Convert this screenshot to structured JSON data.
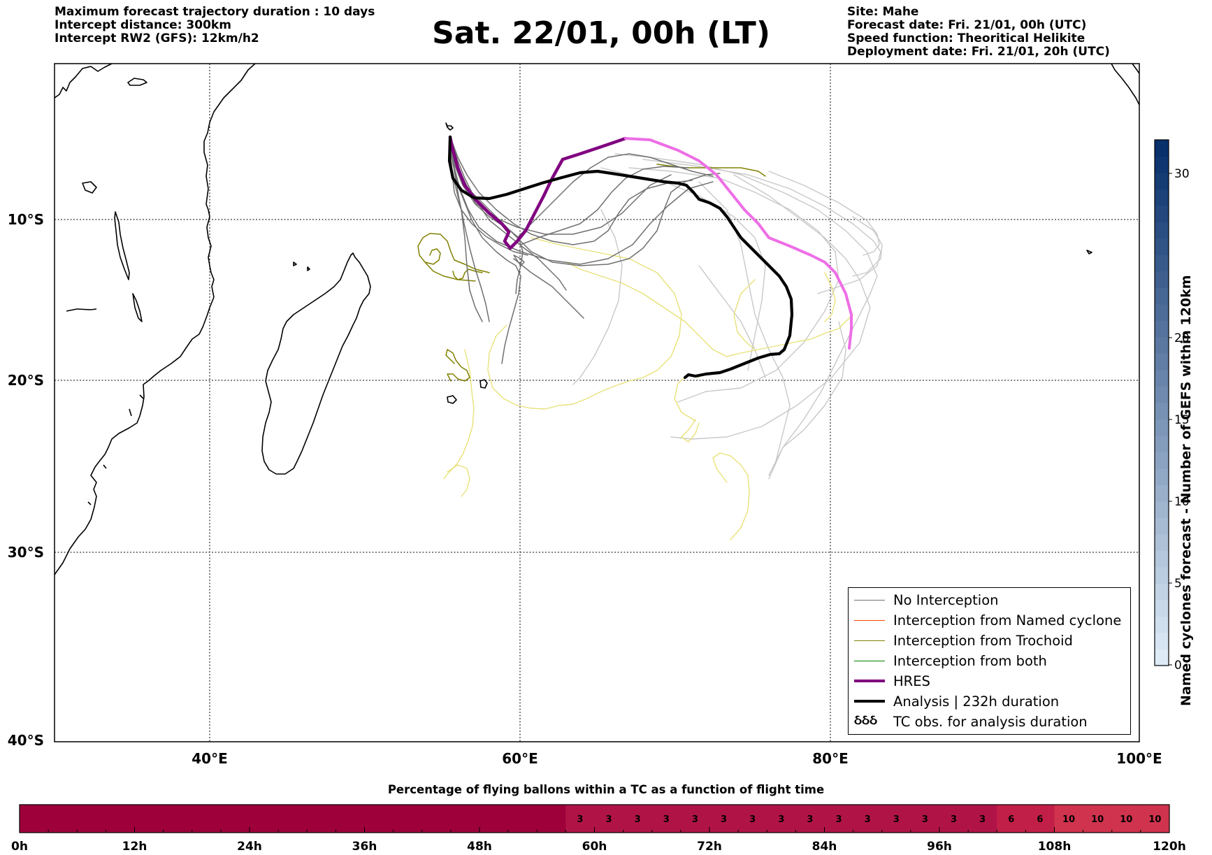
{
  "header": {
    "left": [
      "Maximum forecast trajectory duration : 10 days",
      "Intercept distance: 300km",
      "Intercept RW2 (GFS):  12km/h2"
    ],
    "title": "Sat. 22/01, 00h (LT)",
    "right": [
      "Site: Mahe",
      "Forecast date: Fri. 21/01, 00h (UTC)",
      "Speed function: Theoritical Helikite",
      "Deployment date: Fri. 21/01, 20h (UTC)"
    ]
  },
  "map": {
    "lon_range": [
      30,
      100
    ],
    "lat_range": [
      -40,
      1
    ],
    "lat_labels": [
      "10°S",
      "20°S",
      "30°S",
      "40°S"
    ],
    "lon_labels": [
      "40°E",
      "60°E",
      "80°E",
      "100°E"
    ]
  },
  "legend": {
    "items": [
      {
        "label": "No Interception",
        "color": "#707070"
      },
      {
        "label": "Interception from Named cyclone",
        "color": "#ff4500"
      },
      {
        "label": "Interception from Trochoid",
        "color": "#808000"
      },
      {
        "label": "Interception from both",
        "color": "#008000"
      },
      {
        "label": "HRES",
        "color": "#800080"
      },
      {
        "label": "Analysis | 232h duration",
        "color": "#000000"
      }
    ],
    "tc_obs_symbol": "ઠઠઠ",
    "tc_obs_label": "TC obs. for analysis duration"
  },
  "colorbar_right": {
    "title": "Named cyclones forecast - Number of GEFS within 120km",
    "ticks": [
      "0",
      "5",
      "10",
      "15",
      "20",
      "30"
    ],
    "min": 0,
    "max": 32
  },
  "bottom_bar": {
    "title": "Percentage of flying ballons within a TC as a function of flight time",
    "hour_labels": [
      "0h",
      "12h",
      "24h",
      "36h",
      "48h",
      "60h",
      "72h",
      "84h",
      "96h",
      "108h",
      "120h"
    ],
    "cell_values": [
      "3",
      "3",
      "3",
      "3",
      "3",
      "3",
      "3",
      "3",
      "3",
      "3",
      "3",
      "3",
      "3",
      "3",
      "3",
      "6",
      "6",
      "10",
      "10",
      "10",
      "10"
    ],
    "colors": {
      "zero": "#9e003a",
      "three": "#b01447",
      "six": "#c21f48",
      "ten": "#d0334d"
    }
  }
}
